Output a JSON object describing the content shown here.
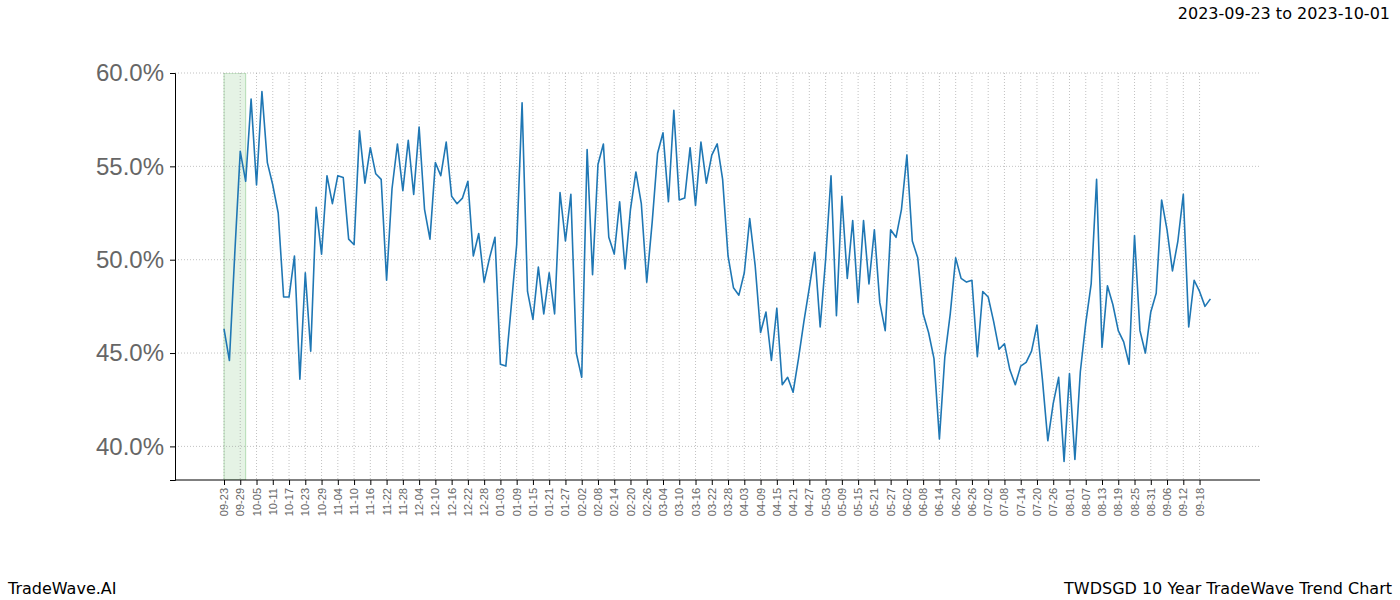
{
  "chart_data": {
    "type": "line",
    "title": "2023-09-23 to 2023-10-01",
    "source": "TradeWave.AI",
    "caption": "TWDSGD 10 Year TradeWave Trend Chart",
    "categories": [
      "09-23",
      null,
      null,
      "09-29",
      null,
      null,
      "10-05",
      null,
      null,
      "10-11",
      null,
      null,
      "10-17",
      null,
      null,
      "10-23",
      null,
      null,
      "10-29",
      null,
      null,
      "11-04",
      null,
      null,
      "11-10",
      null,
      null,
      "11-16",
      null,
      null,
      "11-22",
      null,
      null,
      "11-28",
      null,
      null,
      "12-04",
      null,
      null,
      "12-10",
      null,
      null,
      "12-16",
      null,
      null,
      "12-22",
      null,
      null,
      "12-28",
      null,
      null,
      "01-03",
      null,
      null,
      "01-09",
      null,
      null,
      "01-15",
      null,
      null,
      "01-21",
      null,
      null,
      "01-27",
      null,
      null,
      "02-02",
      null,
      null,
      "02-08",
      null,
      null,
      "02-14",
      null,
      null,
      "02-20",
      null,
      null,
      "02-26",
      null,
      null,
      "03-04",
      null,
      null,
      "03-10",
      null,
      null,
      "03-16",
      null,
      null,
      "03-22",
      null,
      null,
      "03-28",
      null,
      null,
      "04-03",
      null,
      null,
      "04-09",
      null,
      null,
      "04-15",
      null,
      null,
      "04-21",
      null,
      null,
      "04-27",
      null,
      null,
      "05-03",
      null,
      null,
      "05-09",
      null,
      null,
      "05-15",
      null,
      null,
      "05-21",
      null,
      null,
      "05-27",
      null,
      null,
      "06-02",
      null,
      null,
      "06-08",
      null,
      null,
      "06-14",
      null,
      null,
      "06-20",
      null,
      null,
      "06-26",
      null,
      null,
      "07-02",
      null,
      null,
      "07-08",
      null,
      null,
      "07-14",
      null,
      null,
      "07-20",
      null,
      null,
      "07-26",
      null,
      null,
      "08-01",
      null,
      null,
      "08-07",
      null,
      null,
      "08-13",
      null,
      null,
      "08-19",
      null,
      null,
      "08-25",
      null,
      null,
      "08-31",
      null,
      null,
      "09-06",
      null,
      null,
      "09-12",
      null,
      null,
      "09-18",
      null,
      null
    ],
    "values": [
      46.3,
      44.6,
      50.4,
      55.8,
      54.2,
      58.6,
      54.0,
      59.0,
      55.2,
      54.0,
      52.5,
      48.0,
      48.0,
      50.2,
      43.6,
      49.3,
      45.1,
      52.8,
      50.3,
      54.5,
      53.0,
      54.5,
      54.4,
      51.1,
      50.8,
      56.9,
      54.1,
      56.0,
      54.6,
      54.3,
      48.9,
      53.8,
      56.2,
      53.7,
      56.4,
      53.5,
      57.1,
      52.7,
      51.1,
      55.2,
      54.5,
      56.3,
      53.4,
      53.0,
      53.3,
      54.2,
      50.2,
      51.4,
      48.8,
      50.1,
      51.2,
      44.4,
      44.3,
      47.5,
      50.8,
      58.4,
      48.3,
      46.8,
      49.6,
      47.1,
      49.3,
      47.1,
      53.6,
      51.0,
      53.5,
      45.0,
      43.7,
      55.9,
      49.2,
      55.1,
      56.2,
      51.2,
      50.3,
      53.1,
      49.5,
      52.7,
      54.7,
      53.0,
      48.8,
      52.0,
      55.7,
      56.8,
      53.1,
      58.0,
      53.2,
      53.3,
      56.0,
      52.9,
      56.3,
      54.1,
      55.6,
      56.2,
      54.3,
      50.2,
      48.5,
      48.1,
      49.3,
      52.2,
      49.7,
      46.1,
      47.2,
      44.6,
      47.4,
      43.3,
      43.7,
      42.9,
      44.7,
      46.7,
      48.5,
      50.4,
      46.4,
      50.0,
      54.5,
      47.0,
      53.4,
      49.0,
      52.1,
      47.7,
      52.1,
      48.7,
      51.6,
      47.7,
      46.2,
      51.6,
      51.2,
      52.7,
      55.6,
      51.0,
      50.1,
      47.1,
      46.1,
      44.7,
      40.4,
      44.8,
      47.1,
      50.1,
      49.0,
      48.8,
      48.9,
      44.8,
      48.3,
      48.0,
      46.7,
      45.2,
      45.5,
      44.1,
      43.3,
      44.3,
      44.5,
      45.1,
      46.5,
      43.6,
      40.3,
      42.3,
      43.7,
      39.2,
      43.9,
      39.3,
      44.0,
      46.6,
      48.7,
      54.3,
      45.3,
      48.6,
      47.6,
      46.2,
      45.6,
      44.4,
      51.3,
      46.2,
      45.0,
      47.2,
      48.2,
      53.2,
      51.6,
      49.4,
      51.0,
      53.5,
      46.4,
      48.9,
      48.3,
      47.5,
      47.9
    ],
    "color": "#1f77b4",
    "highlight_range": [
      0,
      4
    ],
    "ylim": [
      38.2,
      60
    ],
    "yticks": [
      {
        "value": 40,
        "label": "40.0%"
      },
      {
        "value": 45,
        "label": "45.0%"
      },
      {
        "value": 50,
        "label": "50.0%"
      },
      {
        "value": 55,
        "label": "55.0%"
      },
      {
        "value": 60,
        "label": "60.0%"
      }
    ],
    "grid": true
  }
}
